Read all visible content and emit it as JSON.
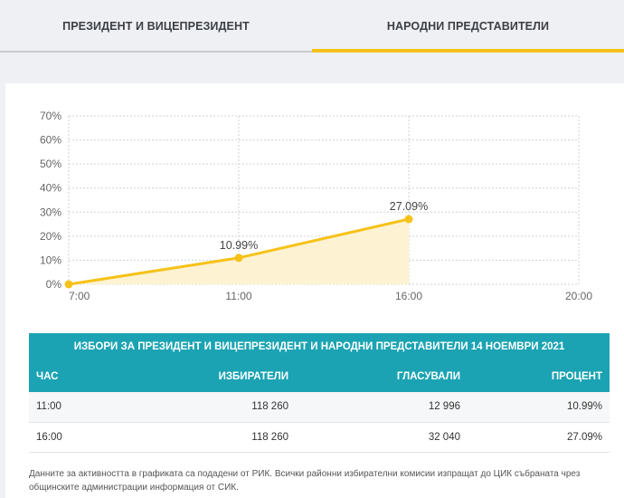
{
  "tabs": [
    {
      "label": "ПРЕЗИДЕНТ И ВИЦЕПРЕЗИДЕНТ",
      "active": false
    },
    {
      "label": "НАРОДНИ ПРЕДСТАВИТЕЛИ",
      "active": true
    }
  ],
  "chart_data": {
    "type": "area",
    "title": "",
    "xlabel": "",
    "ylabel": "",
    "x_ticks": [
      "7:00",
      "11:00",
      "16:00",
      "20:00"
    ],
    "y_ticks": [
      "0%",
      "10%",
      "20%",
      "30%",
      "40%",
      "50%",
      "60%",
      "70%"
    ],
    "ylim": [
      0,
      70
    ],
    "series": [
      {
        "x": [
          "7:00",
          "11:00",
          "16:00"
        ],
        "values": [
          0,
          10.99,
          27.09
        ],
        "labels": [
          "",
          "10.99%",
          "27.09%"
        ]
      }
    ],
    "grid": true,
    "colors": {
      "line": "#f6c21a",
      "fill": "#fdf3d3",
      "point": "#f6c21a"
    }
  },
  "table": {
    "title": "ИЗБОРИ ЗА ПРЕЗИДЕНТ И ВИЦЕПРЕЗИДЕНТ И НАРОДНИ ПРЕДСТАВИТЕЛИ 14 НОЕМВРИ 2021",
    "headers": [
      "ЧАС",
      "ИЗБИРАТЕЛИ",
      "ГЛАСУВАЛИ",
      "ПРОЦЕНТ"
    ],
    "rows": [
      [
        "11:00",
        "118 260",
        "12 996",
        "10.99%"
      ],
      [
        "16:00",
        "118 260",
        "32 040",
        "27.09%"
      ]
    ]
  },
  "footnote": "Данните за активността в графиката са подадени от РИК. Всички районни избирателни комисии изпращат до ЦИК събраната чрез общинските администрации информация от СИК."
}
